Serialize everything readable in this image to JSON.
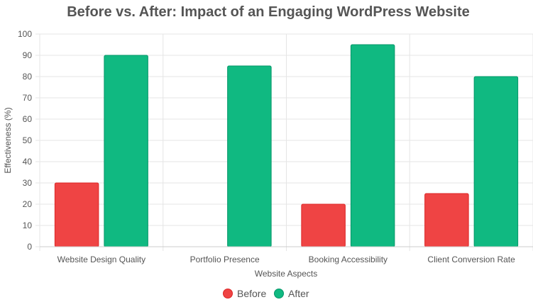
{
  "chart_data": {
    "type": "bar",
    "title": "Before vs. After: Impact of an Engaging WordPress Website",
    "xlabel": "Website Aspects",
    "ylabel": "Effectiveness (%)",
    "ylim": [
      0,
      100
    ],
    "yticks": [
      0,
      10,
      20,
      30,
      40,
      50,
      60,
      70,
      80,
      90,
      100
    ],
    "categories": [
      "Website Design Quality",
      "Portfolio Presence",
      "Booking Accessibility",
      "Client Conversion Rate"
    ],
    "series": [
      {
        "name": "Before",
        "values": [
          30,
          0,
          20,
          25
        ],
        "color": "#ef4444",
        "border": "#dc2626"
      },
      {
        "name": "After",
        "values": [
          90,
          85,
          95,
          80
        ],
        "color": "#10b981",
        "border": "#059669"
      }
    ],
    "grid": true,
    "legend_position": "bottom"
  }
}
